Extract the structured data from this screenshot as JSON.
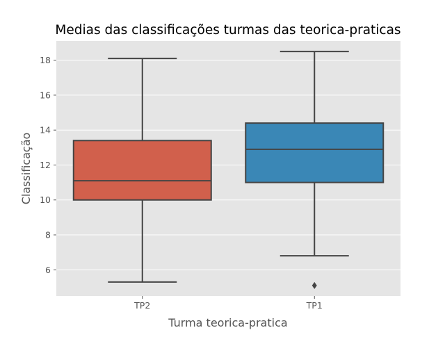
{
  "chart_data": {
    "type": "box",
    "title": "Medias das classificações turmas das teorica-praticas",
    "xlabel": "Turma teorica-pratica",
    "ylabel": "Classificação",
    "ylim": [
      4.5,
      19.1
    ],
    "yticks": [
      6,
      8,
      10,
      12,
      14,
      16,
      18
    ],
    "grid": true,
    "categories": [
      "TP2",
      "TP1"
    ],
    "boxes": [
      {
        "category": "TP2",
        "whisker_low": 5.3,
        "q1": 10.0,
        "median": 11.1,
        "q3": 13.4,
        "whisker_high": 18.1,
        "outliers": [],
        "color": "#d1604c"
      },
      {
        "category": "TP1",
        "whisker_low": 6.8,
        "q1": 11.0,
        "median": 12.9,
        "q3": 14.4,
        "whisker_high": 18.5,
        "outliers": [
          5.1
        ],
        "color": "#3a87b6"
      }
    ],
    "colors": {
      "plot_background": "#e5e5e5",
      "grid": "#ffffff",
      "line": "#444444"
    }
  }
}
